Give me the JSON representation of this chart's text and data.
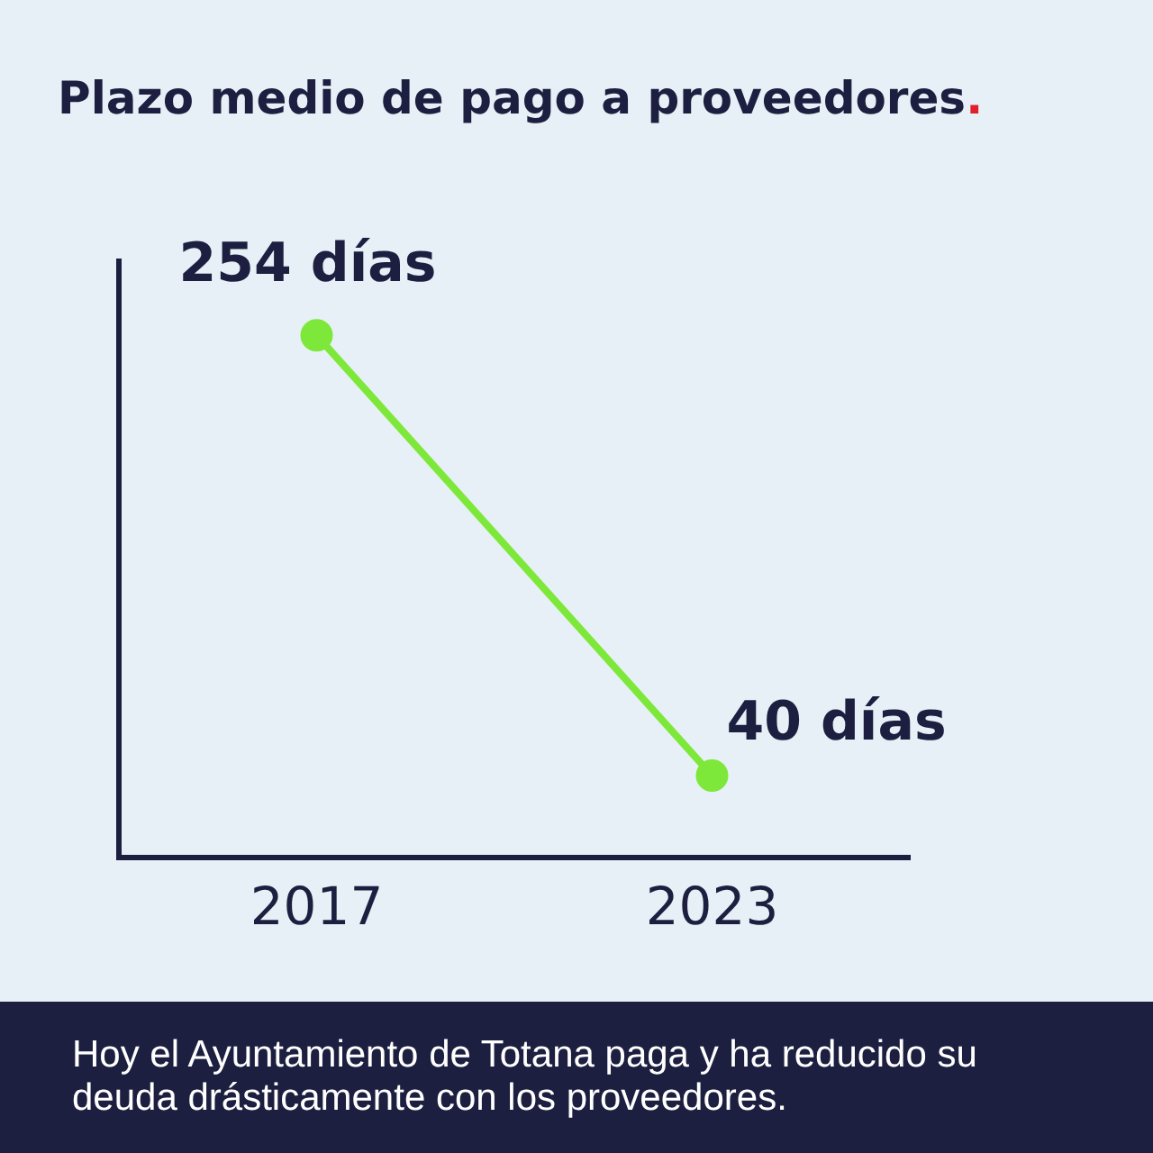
{
  "chart_data": {
    "type": "line",
    "title": "Plazo medio de pago a proveedores.",
    "categories": [
      "2017",
      "2023"
    ],
    "series": [
      {
        "color": "#7ee83a",
        "values": [
          254,
          40
        ],
        "value_labels": [
          "254 días",
          "40 días"
        ]
      }
    ],
    "ylim": [
      0,
      290
    ],
    "grid": false,
    "legend": false,
    "marker": "circle",
    "line_style": "solid",
    "annotations": [
      "Hoy el Ayuntamiento de Totana paga y ha reducido su deuda drásticamente con los proveedores."
    ]
  }
}
